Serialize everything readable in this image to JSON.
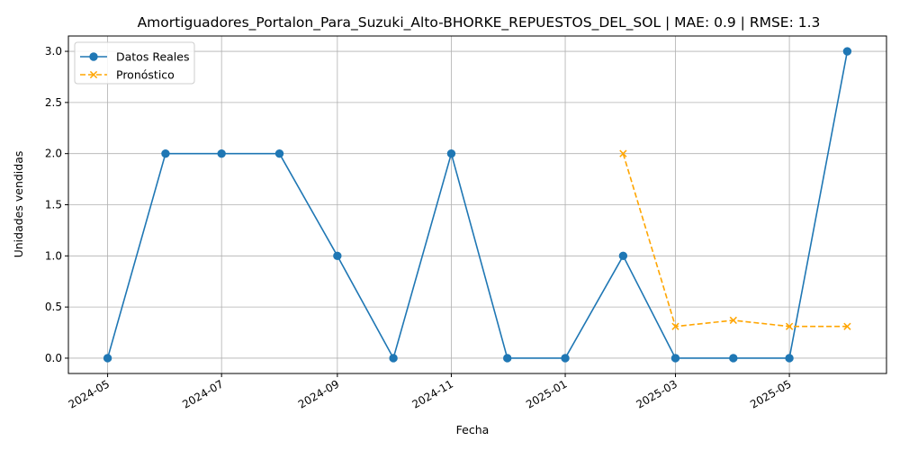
{
  "chart_data": {
    "type": "line",
    "title": "Amortiguadores_Portalon_Para_Suzuki_Alto-BHORKE_REPUESTOS_DEL_SOL | MAE: 0.9 | RMSE: 1.3",
    "xlabel": "Fecha",
    "ylabel": "Unidades vendidas",
    "xlim": [
      "2024-04-10",
      "2025-06-22"
    ],
    "ylim": [
      -0.15,
      3.15
    ],
    "x_ticks": [
      "2024-05",
      "2024-07",
      "2024-09",
      "2024-11",
      "2025-01",
      "2025-03",
      "2025-05"
    ],
    "y_ticks": [
      "0.0",
      "0.5",
      "1.0",
      "1.5",
      "2.0",
      "2.5",
      "3.0"
    ],
    "grid": true,
    "legend_position": "top-left",
    "series": [
      {
        "name": "Datos Reales",
        "color": "#1f77b4",
        "marker": "circle",
        "style": "solid",
        "x": [
          "2024-05-01",
          "2024-06-01",
          "2024-07-01",
          "2024-08-01",
          "2024-09-01",
          "2024-10-01",
          "2024-11-01",
          "2024-12-01",
          "2025-01-01",
          "2025-02-01",
          "2025-03-01",
          "2025-04-01",
          "2025-05-01",
          "2025-06-01"
        ],
        "values": [
          0,
          2,
          2,
          2,
          1,
          0,
          2,
          0,
          0,
          1,
          0,
          0,
          0,
          3
        ]
      },
      {
        "name": "Pronóstico",
        "color": "#ffa500",
        "marker": "x",
        "style": "dashed",
        "x": [
          "2025-02-01",
          "2025-03-01",
          "2025-04-01",
          "2025-05-01",
          "2025-06-01"
        ],
        "values": [
          2.0,
          0.31,
          0.37,
          0.31,
          0.31
        ]
      }
    ]
  }
}
